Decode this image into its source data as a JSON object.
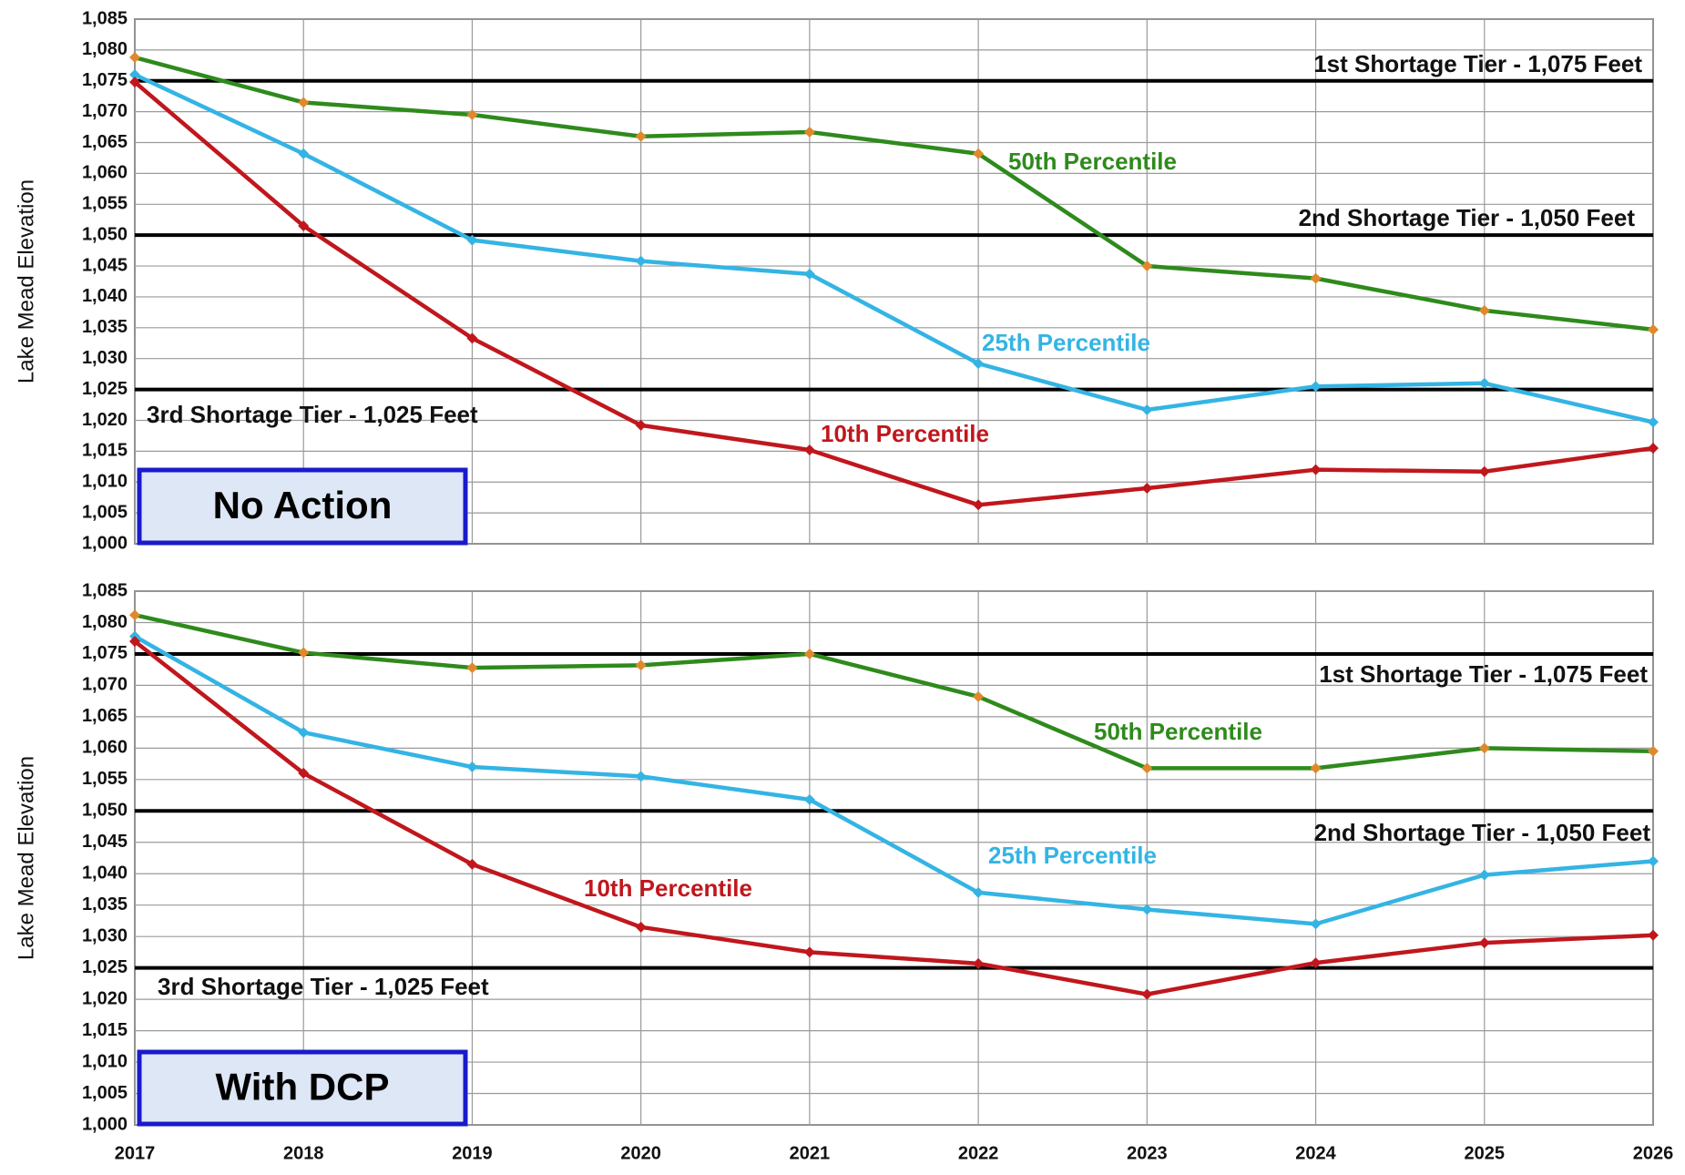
{
  "chart_data": [
    {
      "type": "line",
      "ylabel": "Lake Mead Elevation",
      "label": "No Action",
      "x": [
        2017,
        2018,
        2019,
        2020,
        2021,
        2022,
        2023,
        2024,
        2025,
        2026
      ],
      "xlim": [
        2017,
        2026
      ],
      "ylim": [
        1000,
        1085
      ],
      "yticks": [
        {
          "value": 1000,
          "label": "1,000"
        },
        {
          "value": 1005,
          "label": "1,005"
        },
        {
          "value": 1010,
          "label": "1,010"
        },
        {
          "value": 1015,
          "label": "1,015"
        },
        {
          "value": 1020,
          "label": "1,020"
        },
        {
          "value": 1025,
          "label": "1,025"
        },
        {
          "value": 1030,
          "label": "1,030"
        },
        {
          "value": 1035,
          "label": "1,035"
        },
        {
          "value": 1040,
          "label": "1,040"
        },
        {
          "value": 1045,
          "label": "1,045"
        },
        {
          "value": 1050,
          "label": "1,050"
        },
        {
          "value": 1055,
          "label": "1,055"
        },
        {
          "value": 1060,
          "label": "1,060"
        },
        {
          "value": 1065,
          "label": "1,065"
        },
        {
          "value": 1070,
          "label": "1,070"
        },
        {
          "value": 1075,
          "label": "1,075"
        },
        {
          "value": 1080,
          "label": "1,080"
        },
        {
          "value": 1085,
          "label": "1,085"
        }
      ],
      "grid": true,
      "reference_lines": [
        {
          "value": 1075,
          "label": "1st Shortage Tier -  1,075 Feet"
        },
        {
          "value": 1050,
          "label": "2nd Shortage Tier - 1,050 Feet"
        },
        {
          "value": 1025,
          "label": "3rd Shortage Tier - 1,025 Feet"
        }
      ],
      "series": [
        {
          "name": "50th Percentile",
          "color": "#2f8a1c",
          "marker_color": "#e0892c",
          "values": [
            1078.8,
            1071.5,
            1069.5,
            1066,
            1066.7,
            1063.2,
            1045,
            1043,
            1037.8,
            1034.7
          ]
        },
        {
          "name": "25th Percentile",
          "color": "#34b4e4",
          "marker_color": "#34b4e4",
          "values": [
            1076,
            1063.2,
            1049.2,
            1045.8,
            1043.7,
            1029.2,
            1021.7,
            1025.5,
            1026,
            1019.7
          ]
        },
        {
          "name": "10th Percentile",
          "color": "#c0171d",
          "marker_color": "#c0171d",
          "values": [
            1074.8,
            1051.5,
            1033.3,
            1019.2,
            1015.2,
            1006.3,
            1009,
            1012,
            1011.7,
            1015.5
          ]
        }
      ]
    },
    {
      "type": "line",
      "ylabel": "Lake Mead Elevation",
      "label": "With DCP",
      "x": [
        2017,
        2018,
        2019,
        2020,
        2021,
        2022,
        2023,
        2024,
        2025,
        2026
      ],
      "xlim": [
        2017,
        2026
      ],
      "xticks": [
        2017,
        2018,
        2019,
        2020,
        2021,
        2022,
        2023,
        2024,
        2025,
        2026
      ],
      "ylim": [
        1000,
        1085
      ],
      "yticks": [
        {
          "value": 1000,
          "label": "1,000"
        },
        {
          "value": 1005,
          "label": "1,005"
        },
        {
          "value": 1010,
          "label": "1,010"
        },
        {
          "value": 1015,
          "label": "1,015"
        },
        {
          "value": 1020,
          "label": "1,020"
        },
        {
          "value": 1025,
          "label": "1,025"
        },
        {
          "value": 1030,
          "label": "1,030"
        },
        {
          "value": 1035,
          "label": "1,035"
        },
        {
          "value": 1040,
          "label": "1,040"
        },
        {
          "value": 1045,
          "label": "1,045"
        },
        {
          "value": 1050,
          "label": "1,050"
        },
        {
          "value": 1055,
          "label": "1,055"
        },
        {
          "value": 1060,
          "label": "1,060"
        },
        {
          "value": 1065,
          "label": "1,065"
        },
        {
          "value": 1070,
          "label": "1,070"
        },
        {
          "value": 1075,
          "label": "1,075"
        },
        {
          "value": 1080,
          "label": "1,080"
        },
        {
          "value": 1085,
          "label": "1,085"
        }
      ],
      "grid": true,
      "reference_lines": [
        {
          "value": 1075,
          "label": "1st Shortage Tier -  1,075 Feet"
        },
        {
          "value": 1050,
          "label": "2nd Shortage Tier - 1,050 Feet"
        },
        {
          "value": 1025,
          "label": "3rd Shortage Tier - 1,025 Feet"
        }
      ],
      "series": [
        {
          "name": "50th Percentile",
          "color": "#2f8a1c",
          "marker_color": "#e0892c",
          "values": [
            1081.2,
            1075.2,
            1072.8,
            1073.2,
            1075,
            1068.2,
            1056.8,
            1056.8,
            1060,
            1059.5
          ]
        },
        {
          "name": "25th Percentile",
          "color": "#34b4e4",
          "marker_color": "#34b4e4",
          "values": [
            1077.8,
            1062.5,
            1057,
            1055.5,
            1051.8,
            1037,
            1034.3,
            1032,
            1039.8,
            1042
          ]
        },
        {
          "name": "10th Percentile",
          "color": "#c0171d",
          "marker_color": "#c0171d",
          "values": [
            1077,
            1056,
            1041.5,
            1031.5,
            1027.5,
            1025.7,
            1020.8,
            1025.8,
            1029,
            1030.2
          ]
        }
      ]
    }
  ]
}
